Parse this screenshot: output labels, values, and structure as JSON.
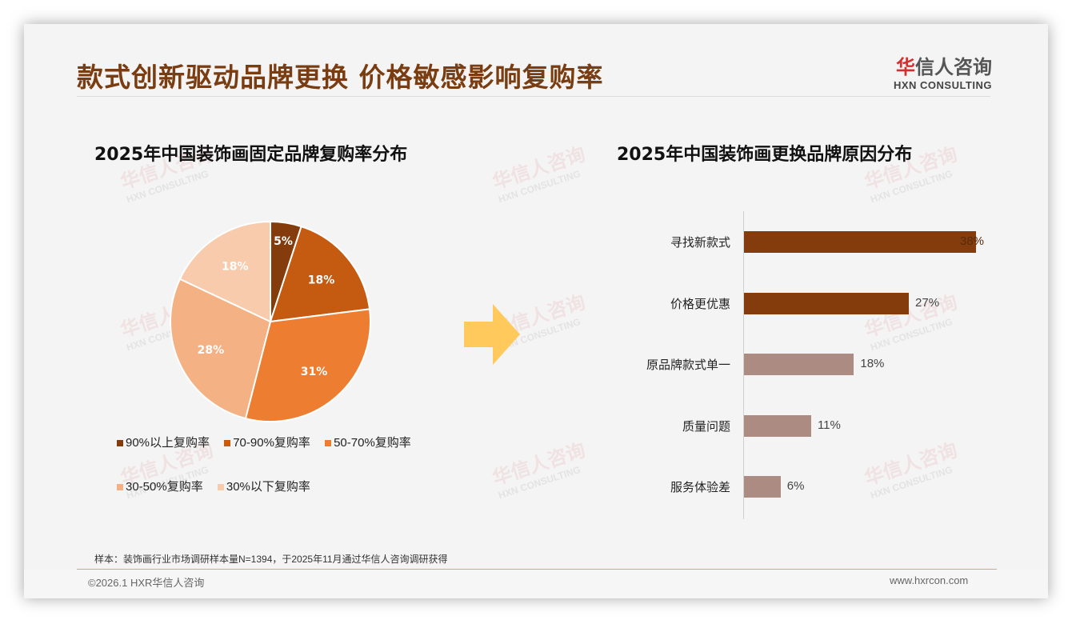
{
  "header": {
    "title": "款式创新驱动品牌更换 价格敏感影响复购率",
    "logo_cn_red": "华",
    "logo_cn_rest": "信人咨询",
    "logo_en": "HXN CONSULTING"
  },
  "watermark": {
    "cn": "华信人咨询",
    "en": "HXN CONSULTING"
  },
  "colors": {
    "title": "#7a3d12",
    "arrow": "#ffc95c",
    "bar_dark": "#843c0c",
    "bar_light": "#ac8c82",
    "pie": [
      "#843c0c",
      "#c55a11",
      "#ed7d31",
      "#f4b183",
      "#f8cbad"
    ]
  },
  "chart_data": [
    {
      "type": "pie",
      "title": "2025年中国装饰画固定品牌复购率分布",
      "categories": [
        "90%以上复购率",
        "70-90%复购率",
        "50-70%复购率",
        "30-50%复购率",
        "30%以下复购率"
      ],
      "values": [
        5,
        18,
        31,
        28,
        18
      ],
      "labels": [
        "5%",
        "18%",
        "31%",
        "28%",
        "18%"
      ],
      "legend_position": "bottom"
    },
    {
      "type": "bar",
      "orientation": "horizontal",
      "title": "2025年中国装饰画更换品牌原因分布",
      "categories": [
        "寻找新款式",
        "价格更优惠",
        "原品牌款式单一",
        "质量问题",
        "服务体验差"
      ],
      "values": [
        38,
        27,
        18,
        11,
        6
      ],
      "labels": [
        "38%",
        "27%",
        "18%",
        "11%",
        "6%"
      ],
      "xlim": [
        0,
        40
      ],
      "grid": false
    }
  ],
  "footer": {
    "note": "样本：装饰画行业市场调研样本量N=1394，于2025年11月通过华信人咨询调研获得",
    "copyright": "©2026.1 HXR华信人咨询",
    "website": "www.hxrcon.com"
  }
}
